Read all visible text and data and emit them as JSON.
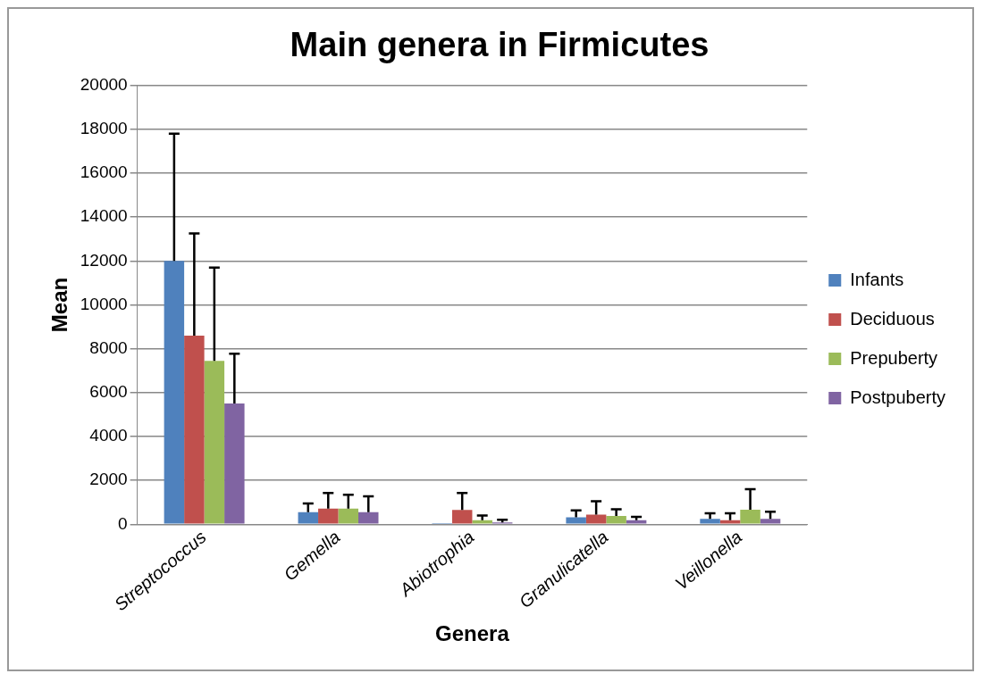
{
  "chart_data": {
    "type": "bar",
    "title": "Main genera in Firmicutes",
    "xlabel": "Genera",
    "ylabel": "Mean",
    "categories": [
      "Streptococcus",
      "Gemella",
      "Abiotrophia",
      "Granulicatella",
      "Veillonella"
    ],
    "series": [
      {
        "name": "Infants",
        "color": "#4f81bd",
        "values": [
          12000,
          550,
          60,
          315,
          250
        ],
        "errors": [
          [
            12000,
            17800
          ],
          [
            550,
            950
          ],
          null,
          [
            315,
            630
          ],
          [
            250,
            500
          ]
        ]
      },
      {
        "name": "Deciduous",
        "color": "#c0504d",
        "values": [
          8600,
          715,
          650,
          440,
          190
        ],
        "errors": [
          [
            8600,
            13250
          ],
          [
            715,
            1430
          ],
          [
            650,
            1430
          ],
          [
            440,
            1050
          ],
          [
            190,
            500
          ]
        ]
      },
      {
        "name": "Prepuberty",
        "color": "#9bbb59",
        "values": [
          7450,
          715,
          190,
          380,
          670
        ],
        "errors": [
          [
            7450,
            11700
          ],
          [
            715,
            1350
          ],
          [
            190,
            400
          ],
          [
            380,
            690
          ],
          [
            670,
            1600
          ]
        ]
      },
      {
        "name": "Postpuberty",
        "color": "#8064a2",
        "values": [
          5500,
          550,
          85,
          190,
          250
        ],
        "errors": [
          [
            5500,
            7770
          ],
          [
            550,
            1280
          ],
          [
            85,
            210
          ],
          [
            190,
            335
          ],
          [
            250,
            570
          ]
        ]
      }
    ],
    "ylim": [
      0,
      20000
    ],
    "yticks": [
      0,
      2000,
      4000,
      6000,
      8000,
      10000,
      12000,
      14000,
      16000,
      18000,
      20000
    ],
    "grid": "y",
    "legend": "right"
  }
}
